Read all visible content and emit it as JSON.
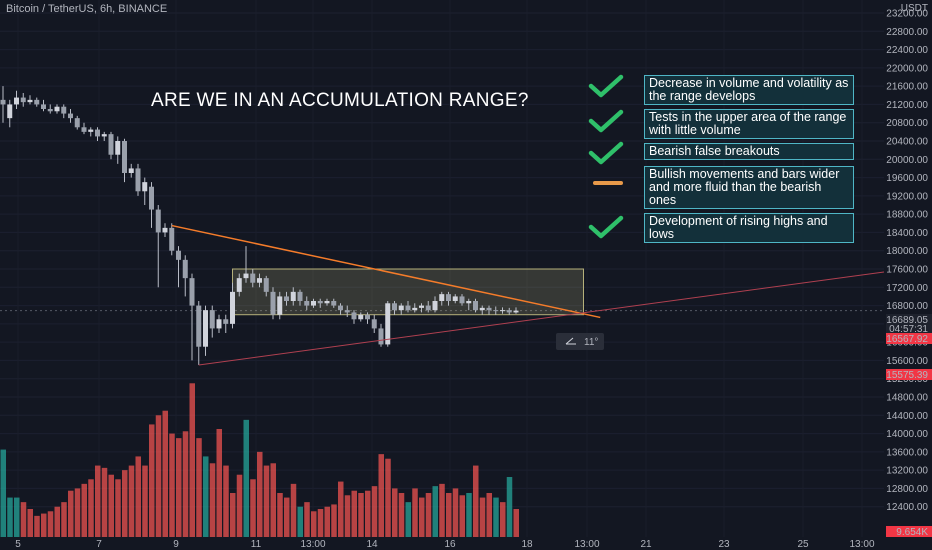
{
  "header": {
    "symbol": "Bitcoin / TetherUS, 6h, BINANCE"
  },
  "title": "ARE WE IN AN ACCUMULATION RANGE?",
  "checklist": [
    {
      "status": "check",
      "text": "Decrease in volume and volatility as the range develops"
    },
    {
      "status": "check",
      "text": "Tests in the upper area of the range with little volume"
    },
    {
      "status": "check",
      "text": "Bearish false breakouts"
    },
    {
      "status": "pending",
      "text": "Bullish movements and bars wider and more fluid than the bearish ones"
    },
    {
      "status": "check",
      "text": "Development of rising highs and lows"
    }
  ],
  "measure_label": "11°",
  "price_labels": {
    "currency": "USDT",
    "current_price": "16689.05",
    "countdown": "04:57:31",
    "red_tag": "16567.92",
    "low_tag": "15575.39",
    "volume_tag": "9.654K"
  },
  "colors": {
    "up": "#26a69a",
    "down": "#ef5350",
    "candle": "#b8bcc6",
    "trend_orange": "#f57c2a",
    "trend_red": "#b04050",
    "box": "#b5b07a"
  },
  "chart_data": {
    "type": "candlestick",
    "y_axis": {
      "range": [
        12000,
        23200
      ],
      "ticks": [
        23200,
        22800,
        22400,
        22000,
        21600,
        21200,
        20800,
        20400,
        20000,
        19600,
        19200,
        18800,
        18400,
        18000,
        17600,
        17200,
        16800,
        16400,
        16000,
        15600,
        15200,
        14800,
        14400,
        14000,
        13600,
        13200,
        12800,
        12400
      ]
    },
    "x_axis": {
      "ticks": [
        "5",
        "7",
        "9",
        "11",
        "13:00",
        "14",
        "16",
        "18",
        "13:00",
        "21",
        "23",
        "25",
        "13:00"
      ]
    },
    "candles": [
      [
        21300,
        21200,
        21600,
        20800
      ],
      [
        20900,
        21200,
        21300,
        20700
      ],
      [
        21200,
        21350,
        21500,
        21100
      ],
      [
        21350,
        21250,
        21450,
        21150
      ],
      [
        21250,
        21300,
        21400,
        21200
      ],
      [
        21300,
        21200,
        21350,
        21150
      ],
      [
        21200,
        21100,
        21300,
        21050
      ],
      [
        21100,
        21050,
        21200,
        21000
      ],
      [
        21050,
        21150,
        21200,
        21000
      ],
      [
        21150,
        21000,
        21200,
        20900
      ],
      [
        21000,
        20900,
        21100,
        20800
      ],
      [
        20900,
        20700,
        20950,
        20650
      ],
      [
        20700,
        20600,
        20800,
        20550
      ],
      [
        20600,
        20650,
        20700,
        20500
      ],
      [
        20650,
        20500,
        20700,
        20400
      ],
      [
        20500,
        20550,
        20600,
        20400
      ],
      [
        20550,
        20100,
        20600,
        20000
      ],
      [
        20100,
        20400,
        20500,
        19900
      ],
      [
        20400,
        19700,
        20450,
        19500
      ],
      [
        19700,
        19800,
        19900,
        19600
      ],
      [
        19800,
        19300,
        19900,
        19200
      ],
      [
        19300,
        19500,
        19600,
        19000
      ],
      [
        19400,
        18900,
        19500,
        18500
      ],
      [
        18900,
        18400,
        19000,
        17200
      ],
      [
        18400,
        18500,
        18600,
        18300
      ],
      [
        18500,
        18000,
        18600,
        17900
      ],
      [
        18000,
        17800,
        18100,
        17200
      ],
      [
        17800,
        17400,
        17900,
        17000
      ],
      [
        17400,
        16800,
        17500,
        15600
      ],
      [
        16800,
        15900,
        16900,
        15500
      ],
      [
        15900,
        16700,
        16800,
        15700
      ],
      [
        16700,
        16300,
        16800,
        16100
      ],
      [
        16300,
        16500,
        16600,
        16200
      ],
      [
        16500,
        16400,
        16600,
        16200
      ],
      [
        16400,
        17100,
        17300,
        16300
      ],
      [
        17100,
        17400,
        17500,
        17000
      ],
      [
        17400,
        17500,
        18100,
        17300
      ],
      [
        17500,
        17300,
        17600,
        17200
      ],
      [
        17300,
        17400,
        17500,
        17200
      ],
      [
        17400,
        17100,
        17450,
        17000
      ],
      [
        17100,
        16600,
        17200,
        16500
      ],
      [
        16600,
        17000,
        17100,
        16500
      ],
      [
        17000,
        16900,
        17100,
        16800
      ],
      [
        16900,
        17100,
        17200,
        16800
      ],
      [
        17100,
        16900,
        17150,
        16800
      ],
      [
        16900,
        16800,
        17000,
        16700
      ],
      [
        16800,
        16900,
        16950,
        16750
      ],
      [
        16900,
        16850,
        16950,
        16750
      ],
      [
        16850,
        16900,
        16950,
        16800
      ],
      [
        16900,
        16800,
        16950,
        16750
      ],
      [
        16800,
        16700,
        16850,
        16600
      ],
      [
        16700,
        16650,
        16800,
        16550
      ],
      [
        16650,
        16500,
        16700,
        16400
      ],
      [
        16500,
        16600,
        16650,
        16450
      ],
      [
        16600,
        16500,
        16650,
        16400
      ],
      [
        16500,
        16300,
        16600,
        16200
      ],
      [
        16300,
        15950,
        16400,
        15900
      ],
      [
        15950,
        16850,
        16900,
        15900
      ],
      [
        16850,
        16700,
        16900,
        16600
      ],
      [
        16700,
        16800,
        16850,
        16600
      ],
      [
        16800,
        16700,
        16900,
        16650
      ],
      [
        16700,
        16750,
        16850,
        16650
      ],
      [
        16750,
        16800,
        16850,
        16650
      ],
      [
        16800,
        16700,
        16900,
        16650
      ],
      [
        16700,
        16900,
        17000,
        16650
      ],
      [
        16900,
        17050,
        17100,
        16800
      ],
      [
        17050,
        16900,
        17100,
        16800
      ],
      [
        16900,
        17000,
        17050,
        16850
      ],
      [
        17000,
        16850,
        17050,
        16800
      ],
      [
        16850,
        16900,
        16950,
        16700
      ],
      [
        16900,
        16700,
        16950,
        16650
      ],
      [
        16700,
        16750,
        16800,
        16600
      ],
      [
        16750,
        16700,
        16800,
        16600
      ],
      [
        16700,
        16680,
        16780,
        16600
      ],
      [
        16680,
        16700,
        16760,
        16620
      ],
      [
        16700,
        16650,
        16750,
        16600
      ],
      [
        16650,
        16689,
        16760,
        16620
      ]
    ],
    "volume": [
      [
        13650,
        "up"
      ],
      [
        12600,
        "up"
      ],
      [
        12600,
        "up"
      ],
      [
        12500,
        "down"
      ],
      [
        12350,
        "down"
      ],
      [
        12200,
        "down"
      ],
      [
        12250,
        "down"
      ],
      [
        12300,
        "down"
      ],
      [
        12400,
        "down"
      ],
      [
        12500,
        "down"
      ],
      [
        12750,
        "down"
      ],
      [
        12800,
        "down"
      ],
      [
        12900,
        "down"
      ],
      [
        13000,
        "down"
      ],
      [
        13300,
        "down"
      ],
      [
        13250,
        "down"
      ],
      [
        13100,
        "down"
      ],
      [
        13000,
        "down"
      ],
      [
        13200,
        "down"
      ],
      [
        13300,
        "down"
      ],
      [
        13500,
        "down"
      ],
      [
        13300,
        "down"
      ],
      [
        14200,
        "down"
      ],
      [
        14400,
        "down"
      ],
      [
        14500,
        "down"
      ],
      [
        14000,
        "down"
      ],
      [
        13900,
        "down"
      ],
      [
        14050,
        "down"
      ],
      [
        15100,
        "down"
      ],
      [
        13900,
        "down"
      ],
      [
        13500,
        "up"
      ],
      [
        13350,
        "down"
      ],
      [
        14100,
        "down"
      ],
      [
        13300,
        "down"
      ],
      [
        12700,
        "down"
      ],
      [
        13100,
        "down"
      ],
      [
        14300,
        "up"
      ],
      [
        13000,
        "down"
      ],
      [
        13600,
        "down"
      ],
      [
        13300,
        "down"
      ],
      [
        13350,
        "down"
      ],
      [
        12700,
        "down"
      ],
      [
        12600,
        "down"
      ],
      [
        12900,
        "down"
      ],
      [
        12400,
        "up"
      ],
      [
        12500,
        "down"
      ],
      [
        12300,
        "down"
      ],
      [
        12350,
        "down"
      ],
      [
        12400,
        "down"
      ],
      [
        12450,
        "down"
      ],
      [
        12950,
        "down"
      ],
      [
        12650,
        "down"
      ],
      [
        12750,
        "down"
      ],
      [
        12700,
        "down"
      ],
      [
        12750,
        "down"
      ],
      [
        12850,
        "down"
      ],
      [
        13550,
        "down"
      ],
      [
        13450,
        "down"
      ],
      [
        12800,
        "down"
      ],
      [
        12700,
        "down"
      ],
      [
        12500,
        "up"
      ],
      [
        12800,
        "down"
      ],
      [
        12600,
        "down"
      ],
      [
        12700,
        "down"
      ],
      [
        12850,
        "up"
      ],
      [
        12900,
        "down"
      ],
      [
        12700,
        "down"
      ],
      [
        12800,
        "down"
      ],
      [
        12650,
        "down"
      ],
      [
        12700,
        "up"
      ],
      [
        13300,
        "down"
      ],
      [
        12600,
        "down"
      ],
      [
        12700,
        "down"
      ],
      [
        12600,
        "up"
      ],
      [
        12500,
        "down"
      ],
      [
        13050,
        "up"
      ],
      [
        12350,
        "down"
      ]
    ],
    "accumulation_box": {
      "x": [
        34,
        86
      ],
      "y": [
        16600,
        17600
      ]
    },
    "trendlines": [
      {
        "name": "descending",
        "from": [
          25,
          18550
        ],
        "to": [
          87,
          16650
        ]
      },
      {
        "name": "rising",
        "from": [
          29,
          15500
        ],
        "to": [
          140,
          17600
        ]
      }
    ]
  }
}
